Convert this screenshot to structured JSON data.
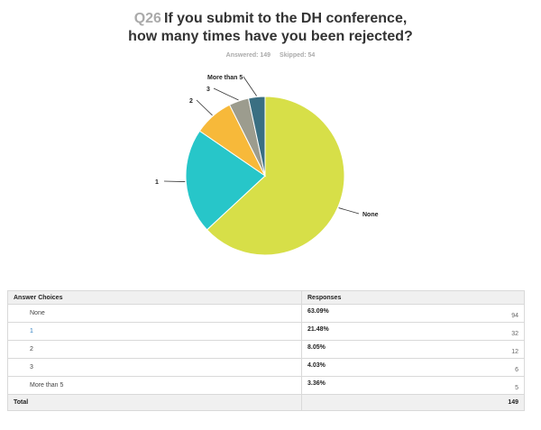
{
  "question": {
    "number": "Q26",
    "title_line1": "If you submit to the DH conference,",
    "title_line2": "how many times have you been rejected?",
    "answered": "Answered: 149",
    "skipped": "Skipped: 54"
  },
  "chart_data": {
    "type": "pie",
    "categories": [
      "None",
      "1",
      "2",
      "3",
      "More than 5"
    ],
    "values": [
      63.09,
      21.48,
      8.05,
      4.03,
      3.36
    ],
    "counts": [
      94,
      32,
      12,
      6,
      5
    ],
    "colors": [
      "#d7df48",
      "#27c6c9",
      "#f7b93a",
      "#9c9c8e",
      "#3a6f82"
    ],
    "unit": "%"
  },
  "table": {
    "header_choices": "Answer Choices",
    "header_responses": "Responses",
    "rows": [
      {
        "label": "None",
        "percent": "63.09%",
        "count": "94"
      },
      {
        "label": "1",
        "percent": "21.48%",
        "count": "32"
      },
      {
        "label": "2",
        "percent": "8.05%",
        "count": "12"
      },
      {
        "label": "3",
        "percent": "4.03%",
        "count": "6"
      },
      {
        "label": "More than 5",
        "percent": "3.36%",
        "count": "5"
      }
    ],
    "total_label": "Total",
    "total_count": "149"
  }
}
